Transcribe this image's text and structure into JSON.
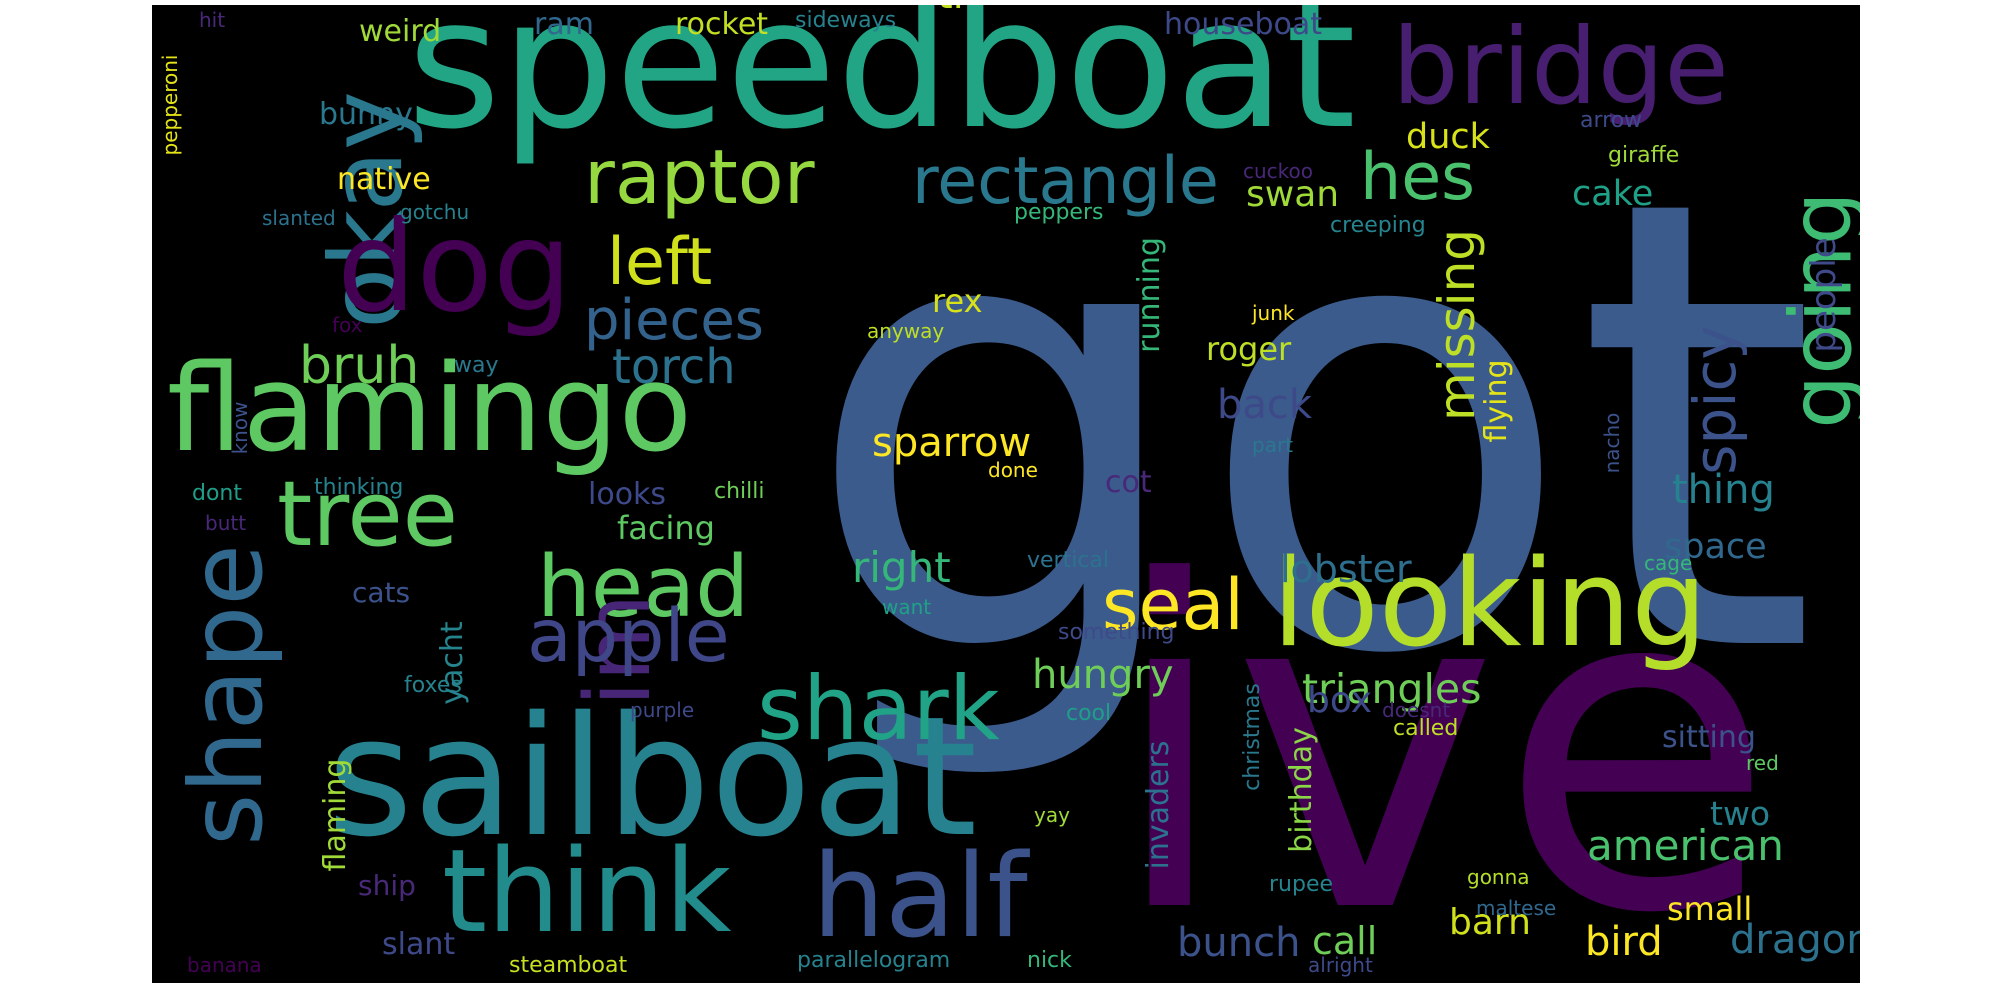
{
  "palette": {
    "background": "#000000",
    "page": "#ffffff",
    "yellow": "#fde725",
    "lime": "#b5de2b",
    "green": "#6ece58",
    "teal_green": "#35b779",
    "teal": "#1f9e89",
    "cyan": "#26828e",
    "blue": "#31688e",
    "indigo": "#3e4989",
    "violet": "#482878",
    "purple": "#440154"
  },
  "words": [
    {
      "text": "got",
      "color": "#3b5b8c"
    },
    {
      "text": "ive",
      "color": "#440154"
    },
    {
      "text": "speedboat",
      "color": "#21a585"
    },
    {
      "text": "sailboat",
      "color": "#26828e"
    },
    {
      "text": "looking",
      "color": "#b5de2b"
    },
    {
      "text": "flamingo",
      "color": "#5ec962"
    },
    {
      "text": "bridge",
      "color": "#481f70"
    },
    {
      "text": "okay",
      "color": "#2a788e"
    },
    {
      "text": "shape",
      "color": "#31688e"
    },
    {
      "text": "dog",
      "color": "#440154"
    },
    {
      "text": "think",
      "color": "#228c8d"
    },
    {
      "text": "half",
      "color": "#3b528b"
    },
    {
      "text": "tree",
      "color": "#5ec962"
    },
    {
      "text": "head",
      "color": "#5ec962"
    },
    {
      "text": "shark",
      "color": "#20a386"
    },
    {
      "text": "going",
      "color": "#3fbc73"
    },
    {
      "text": "im",
      "color": "#482677"
    },
    {
      "text": "raptor",
      "color": "#95d840"
    },
    {
      "text": "seal",
      "color": "#fde725"
    },
    {
      "text": "apple",
      "color": "#3f4788"
    },
    {
      "text": "rectangle",
      "color": "#2a788e"
    },
    {
      "text": "hes",
      "color": "#4ac16d"
    },
    {
      "text": "left",
      "color": "#d0e11c"
    },
    {
      "text": "pieces",
      "color": "#33638d"
    },
    {
      "text": "spicy",
      "color": "#3b528b"
    },
    {
      "text": "missing",
      "color": "#bddf26"
    },
    {
      "text": "bruh",
      "color": "#6ece58"
    },
    {
      "text": "torch",
      "color": "#2c728e"
    },
    {
      "text": "triangles",
      "color": "#6ece58"
    },
    {
      "text": "american",
      "color": "#4ac16d"
    },
    {
      "text": "hungry",
      "color": "#6ece58"
    },
    {
      "text": "right",
      "color": "#35b779"
    },
    {
      "text": "sparrow",
      "color": "#fde725"
    },
    {
      "text": "back",
      "color": "#3e4989"
    },
    {
      "text": "lobster",
      "color": "#2e6f8e"
    },
    {
      "text": "dragon",
      "color": "#2c728e"
    },
    {
      "text": "bird",
      "color": "#fde725"
    },
    {
      "text": "call",
      "color": "#6ece58"
    },
    {
      "text": "barn",
      "color": "#d0e11c"
    },
    {
      "text": "bunch",
      "color": "#3b528b"
    },
    {
      "text": "thing",
      "color": "#26828e"
    },
    {
      "text": "space",
      "color": "#31688e"
    },
    {
      "text": "people",
      "color": "#3e4a89"
    },
    {
      "text": "cake",
      "color": "#1fa188"
    },
    {
      "text": "swan",
      "color": "#a0da39"
    },
    {
      "text": "duck",
      "color": "#d8e219"
    },
    {
      "text": "box",
      "color": "#3e4989"
    },
    {
      "text": "small",
      "color": "#fde725"
    },
    {
      "text": "two",
      "color": "#26828e"
    },
    {
      "text": "sitting",
      "color": "#3b528b"
    },
    {
      "text": "facing",
      "color": "#5ec962"
    },
    {
      "text": "looks",
      "color": "#3e4989"
    },
    {
      "text": "cot",
      "color": "#482878"
    },
    {
      "text": "rex",
      "color": "#d8e219"
    },
    {
      "text": "roger",
      "color": "#bddf26"
    },
    {
      "text": "native",
      "color": "#fde725"
    },
    {
      "text": "bunny",
      "color": "#2a788e"
    },
    {
      "text": "weird",
      "color": "#a0da39"
    },
    {
      "text": "ram",
      "color": "#31688e"
    },
    {
      "text": "rocket",
      "color": "#c2df23"
    },
    {
      "text": "houseboat",
      "color": "#3e4989"
    },
    {
      "text": "cats",
      "color": "#3b528b"
    },
    {
      "text": "ship",
      "color": "#482878"
    },
    {
      "text": "slant",
      "color": "#3e4989"
    },
    {
      "text": "yacht",
      "color": "#25848e"
    },
    {
      "text": "flaming",
      "color": "#a0da39"
    },
    {
      "text": "invaders",
      "color": "#2c728e"
    },
    {
      "text": "birthday",
      "color": "#8bd646"
    },
    {
      "text": "running",
      "color": "#35b779"
    },
    {
      "text": "flying",
      "color": "#e5e419"
    },
    {
      "text": "arrow",
      "color": "#3e4989"
    },
    {
      "text": "giraffe",
      "color": "#a0da39"
    },
    {
      "text": "cuckoo",
      "color": "#482878"
    },
    {
      "text": "peppers",
      "color": "#35b779"
    },
    {
      "text": "creeping",
      "color": "#25848e"
    },
    {
      "text": "gotchu",
      "color": "#26828e"
    },
    {
      "text": "slanted",
      "color": "#2c728e"
    },
    {
      "text": "fox",
      "color": "#440154"
    },
    {
      "text": "way",
      "color": "#2a788e"
    },
    {
      "text": "know",
      "color": "#3b528b"
    },
    {
      "text": "junk",
      "color": "#fde725"
    },
    {
      "text": "anyway",
      "color": "#bddf26"
    },
    {
      "text": "part",
      "color": "#2a788e"
    },
    {
      "text": "nacho",
      "color": "#3b528b"
    },
    {
      "text": "done",
      "color": "#fde725"
    },
    {
      "text": "thinking",
      "color": "#26828e"
    },
    {
      "text": "chilli",
      "color": "#6ece58"
    },
    {
      "text": "dont",
      "color": "#1f9e89"
    },
    {
      "text": "butt",
      "color": "#482878"
    },
    {
      "text": "vertical",
      "color": "#2c728e"
    },
    {
      "text": "want",
      "color": "#1fa188"
    },
    {
      "text": "cage",
      "color": "#35b779"
    },
    {
      "text": "something",
      "color": "#3e4a89"
    },
    {
      "text": "foxes",
      "color": "#26828e"
    },
    {
      "text": "purple",
      "color": "#3e4989"
    },
    {
      "text": "cool",
      "color": "#1f9e89"
    },
    {
      "text": "christmas",
      "color": "#2a788e"
    },
    {
      "text": "doesnt",
      "color": "#482878"
    },
    {
      "text": "called",
      "color": "#bddf26"
    },
    {
      "text": "red",
      "color": "#5ec962"
    },
    {
      "text": "yay",
      "color": "#a0da39"
    },
    {
      "text": "rupee",
      "color": "#25848e"
    },
    {
      "text": "gonna",
      "color": "#b5de2b"
    },
    {
      "text": "maltese",
      "color": "#31688e"
    },
    {
      "text": "banana",
      "color": "#440154"
    },
    {
      "text": "steamboat",
      "color": "#c8e020"
    },
    {
      "text": "parallelogram",
      "color": "#26828e"
    },
    {
      "text": "nick",
      "color": "#35b779"
    },
    {
      "text": "alright",
      "color": "#3e4989"
    },
    {
      "text": "pepperoni",
      "color": "#e5e419"
    },
    {
      "text": "hit",
      "color": "#482878"
    },
    {
      "text": "sideways",
      "color": "#26828e"
    },
    {
      "text": "tl",
      "color": "#c2df23"
    }
  ]
}
